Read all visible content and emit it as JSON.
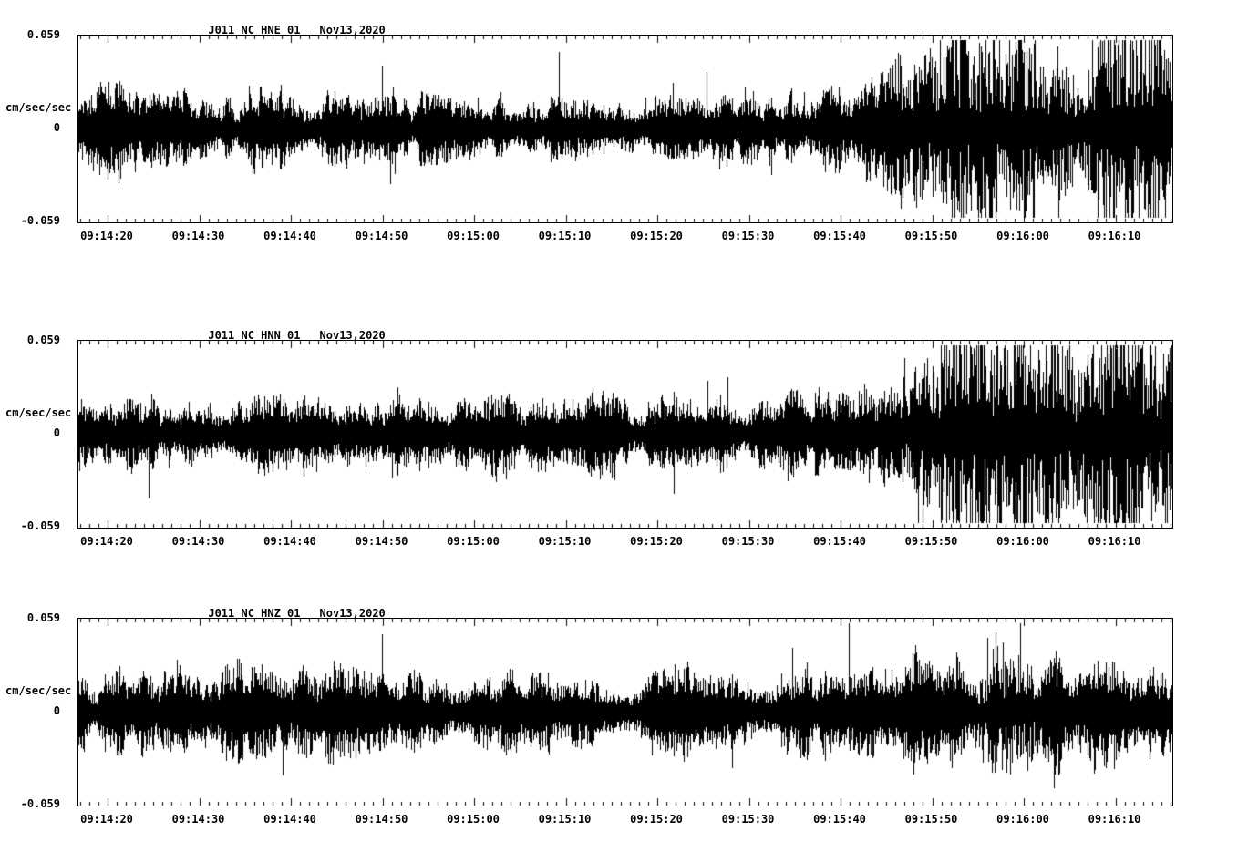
{
  "page": {
    "background": "#ffffff",
    "trace_color": "#000000"
  },
  "chart_data": [
    {
      "type": "line",
      "title": "J011_NC_HNE_01",
      "date": "Nov13,2020",
      "station": "J011",
      "network": "NC",
      "channel": "HNE",
      "location": "01",
      "ylabel": "cm/sec/sec",
      "ylim": [
        -0.059,
        0.059
      ],
      "yticks": {
        "top": "0.059",
        "mid": "0",
        "bottom": "-0.059"
      },
      "xticks": [
        "09:14:20",
        "09:14:30",
        "09:14:40",
        "09:14:50",
        "09:15:00",
        "09:15:10",
        "09:15:20",
        "09:15:30",
        "09:15:40",
        "09:15:50",
        "09:16:00",
        "09:16:10"
      ],
      "x_tick_interval_sec": 10,
      "grid": false,
      "line_color": "#000000",
      "envelope": {
        "start_time": "09:14:15",
        "interval_sec": 5,
        "amplitudes_cm_per_sec2": [
          0.016,
          0.017,
          0.016,
          0.015,
          0.015,
          0.016,
          0.015,
          0.015,
          0.014,
          0.014,
          0.015,
          0.014,
          0.014,
          0.015,
          0.014,
          0.015,
          0.016,
          0.017,
          0.022,
          0.032,
          0.042,
          0.044,
          0.04,
          0.042,
          0.038,
          0.037
        ]
      }
    },
    {
      "type": "line",
      "title": "J011_NC_HNN_01",
      "date": "Nov13,2020",
      "station": "J011",
      "network": "NC",
      "channel": "HNN",
      "location": "01",
      "ylabel": "cm/sec/sec",
      "ylim": [
        -0.059,
        0.059
      ],
      "yticks": {
        "top": "0.059",
        "mid": "0",
        "bottom": "-0.059"
      },
      "xticks": [
        "09:14:20",
        "09:14:30",
        "09:14:40",
        "09:14:50",
        "09:15:00",
        "09:15:10",
        "09:15:20",
        "09:15:30",
        "09:15:40",
        "09:15:50",
        "09:16:00",
        "09:16:10"
      ],
      "x_tick_interval_sec": 10,
      "grid": false,
      "line_color": "#000000",
      "envelope": {
        "start_time": "09:14:15",
        "interval_sec": 5,
        "amplitudes_cm_per_sec2": [
          0.015,
          0.016,
          0.016,
          0.017,
          0.017,
          0.018,
          0.018,
          0.017,
          0.016,
          0.015,
          0.015,
          0.014,
          0.014,
          0.015,
          0.015,
          0.016,
          0.017,
          0.018,
          0.022,
          0.032,
          0.047,
          0.052,
          0.044,
          0.047,
          0.044,
          0.042
        ]
      }
    },
    {
      "type": "line",
      "title": "J011_NC_HNZ_01",
      "date": "Nov13,2020",
      "station": "J011",
      "network": "NC",
      "channel": "HNZ",
      "location": "01",
      "ylabel": "cm/sec/sec",
      "ylim": [
        -0.059,
        0.059
      ],
      "yticks": {
        "top": "0.059",
        "mid": "0",
        "bottom": "-0.059"
      },
      "xticks": [
        "09:14:20",
        "09:14:30",
        "09:14:40",
        "09:14:50",
        "09:15:00",
        "09:15:10",
        "09:15:20",
        "09:15:30",
        "09:15:40",
        "09:15:50",
        "09:16:00",
        "09:16:10"
      ],
      "x_tick_interval_sec": 10,
      "grid": false,
      "line_color": "#000000",
      "envelope": {
        "start_time": "09:14:15",
        "interval_sec": 5,
        "amplitudes_cm_per_sec2": [
          0.018,
          0.017,
          0.018,
          0.017,
          0.018,
          0.017,
          0.018,
          0.017,
          0.017,
          0.017,
          0.017,
          0.017,
          0.016,
          0.017,
          0.017,
          0.018,
          0.018,
          0.018,
          0.019,
          0.021,
          0.025,
          0.026,
          0.023,
          0.02,
          0.019,
          0.018
        ]
      }
    }
  ]
}
